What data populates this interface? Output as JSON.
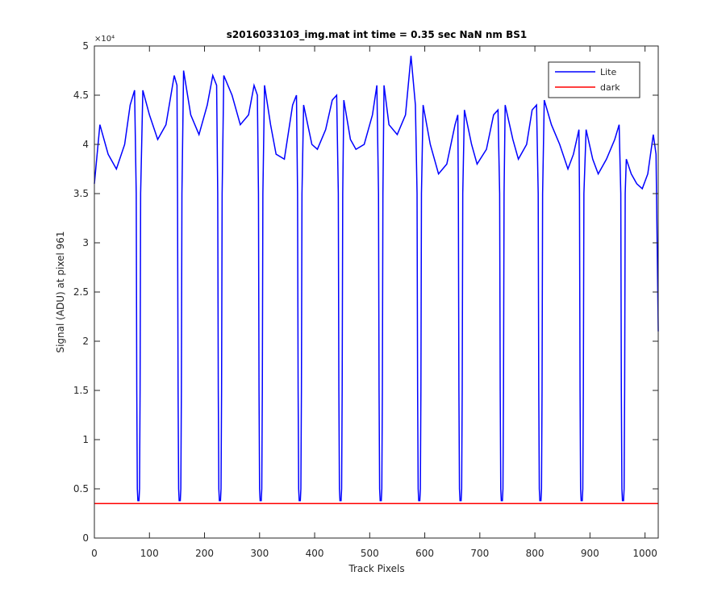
{
  "chart_data": {
    "type": "line",
    "title": "s2016033103_img.mat int time = 0.35 sec  NaN nm BS1",
    "x_label": "Track Pixels",
    "y_label": "Signal (ADU) at pixel 961",
    "y_exponent": "×10⁴",
    "xlim": [
      0,
      1024
    ],
    "ylim": [
      0,
      5
    ],
    "xticks": [
      0,
      100,
      200,
      300,
      400,
      500,
      600,
      700,
      800,
      900,
      1000
    ],
    "yticks": [
      0,
      0.5,
      1,
      1.5,
      2,
      2.5,
      3,
      3.5,
      4,
      4.5,
      5
    ],
    "legend": "top-right",
    "series": [
      {
        "name": "Lite",
        "color": "#0000ff",
        "x": [
          0,
          5,
          10,
          25,
          40,
          55,
          65,
          73,
          76,
          77,
          78,
          79,
          81,
          82,
          83,
          84,
          88,
          100,
          115,
          130,
          145,
          150,
          151,
          152,
          153,
          154,
          156,
          157,
          158,
          159,
          162,
          175,
          190,
          205,
          215,
          222,
          224,
          225,
          226,
          227,
          229,
          230,
          231,
          232,
          235,
          250,
          265,
          280,
          290,
          296,
          298,
          299,
          300,
          301,
          303,
          304,
          305,
          306,
          309,
          320,
          330,
          345,
          360,
          367,
          369,
          370,
          371,
          372,
          374,
          375,
          376,
          377,
          380,
          395,
          405,
          420,
          432,
          440,
          443,
          444,
          445,
          446,
          448,
          449,
          450,
          451,
          453,
          465,
          475,
          490,
          505,
          513,
          516,
          517,
          518,
          519,
          521,
          522,
          523,
          524,
          526,
          535,
          550,
          565,
          575,
          583,
          586,
          587,
          588,
          589,
          591,
          592,
          593,
          594,
          597,
          610,
          625,
          640,
          655,
          660,
          661,
          662,
          663,
          664,
          666,
          667,
          668,
          669,
          672,
          685,
          695,
          712,
          725,
          733,
          736,
          737,
          738,
          739,
          741,
          742,
          743,
          744,
          746,
          760,
          770,
          785,
          795,
          803,
          806,
          807,
          808,
          809,
          811,
          812,
          813,
          814,
          817,
          830,
          845,
          860,
          870,
          880,
          881,
          882,
          883,
          884,
          886,
          887,
          888,
          889,
          893,
          905,
          915,
          930,
          945,
          953,
          956,
          957,
          958,
          959,
          961,
          962,
          963,
          964,
          966,
          975,
          985,
          995,
          1005,
          1015,
          1020,
          1024
        ],
        "values": [
          3.6,
          3.9,
          4.2,
          3.9,
          3.75,
          4.0,
          4.4,
          4.55,
          3.5,
          1.5,
          0.5,
          0.38,
          0.38,
          0.5,
          1.5,
          3.5,
          4.55,
          4.3,
          4.05,
          4.2,
          4.7,
          4.6,
          3.5,
          1.5,
          0.5,
          0.38,
          0.38,
          0.5,
          1.5,
          3.5,
          4.75,
          4.3,
          4.1,
          4.4,
          4.7,
          4.6,
          3.5,
          1.5,
          0.5,
          0.38,
          0.38,
          0.5,
          1.5,
          3.5,
          4.7,
          4.5,
          4.2,
          4.3,
          4.6,
          4.5,
          3.5,
          1.5,
          0.5,
          0.38,
          0.38,
          0.5,
          1.5,
          3.5,
          4.6,
          4.2,
          3.9,
          3.85,
          4.4,
          4.5,
          3.5,
          1.5,
          0.5,
          0.38,
          0.38,
          0.5,
          1.5,
          3.5,
          4.4,
          4.0,
          3.95,
          4.15,
          4.45,
          4.5,
          3.5,
          1.5,
          0.5,
          0.38,
          0.38,
          0.5,
          1.5,
          3.5,
          4.45,
          4.05,
          3.95,
          4.0,
          4.3,
          4.6,
          3.5,
          1.5,
          0.5,
          0.38,
          0.38,
          0.5,
          1.5,
          3.5,
          4.6,
          4.2,
          4.1,
          4.3,
          4.9,
          4.4,
          3.5,
          1.5,
          0.5,
          0.38,
          0.38,
          0.5,
          1.5,
          3.5,
          4.4,
          4.0,
          3.7,
          3.8,
          4.2,
          4.3,
          3.5,
          1.5,
          0.5,
          0.38,
          0.38,
          0.5,
          1.5,
          3.5,
          4.35,
          4.0,
          3.8,
          3.95,
          4.3,
          4.35,
          3.5,
          1.5,
          0.5,
          0.38,
          0.38,
          0.5,
          1.5,
          3.5,
          4.4,
          4.05,
          3.85,
          4.0,
          4.35,
          4.4,
          3.5,
          1.5,
          0.5,
          0.38,
          0.38,
          0.5,
          1.5,
          3.5,
          4.45,
          4.2,
          4.0,
          3.75,
          3.9,
          4.15,
          3.5,
          1.5,
          0.5,
          0.38,
          0.38,
          0.5,
          1.5,
          3.5,
          4.15,
          3.85,
          3.7,
          3.85,
          4.05,
          4.2,
          3.5,
          1.5,
          0.5,
          0.38,
          0.38,
          0.5,
          1.5,
          3.5,
          3.85,
          3.7,
          3.6,
          3.55,
          3.7,
          4.1,
          3.9,
          2.1
        ]
      },
      {
        "name": "dark",
        "color": "#ff0000",
        "x": [
          0,
          1024
        ],
        "values": [
          0.35,
          0.35
        ]
      }
    ]
  }
}
